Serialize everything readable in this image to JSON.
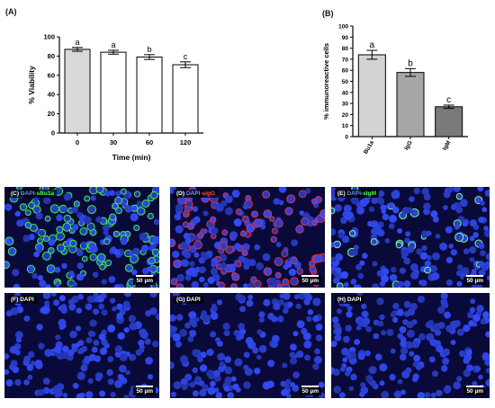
{
  "panel_a": {
    "letter": "(A)"
  },
  "panel_b": {
    "letter": "(B)"
  },
  "chart_data": [
    {
      "type": "bar",
      "categories": [
        "0",
        "30",
        "60",
        "120"
      ],
      "values": [
        87,
        84,
        79,
        71
      ],
      "errors": [
        2,
        2,
        2.5,
        3
      ],
      "letters": [
        "a",
        "a",
        "b",
        "c"
      ],
      "xlabel": "Time (min)",
      "ylabel": "% Viability",
      "ylim": [
        0,
        100
      ],
      "yticks": [
        0,
        20,
        40,
        60,
        80,
        100
      ],
      "colors": [
        "#d9d9d9",
        "#ffffff",
        "#ffffff",
        "#ffffff"
      ]
    },
    {
      "type": "bar",
      "categories": [
        "Bu1a",
        "IgG",
        "IgM"
      ],
      "values": [
        74,
        58,
        27
      ],
      "errors": [
        4,
        3.5,
        1.5
      ],
      "letters": [
        "a",
        "b",
        "c"
      ],
      "xlabel": "",
      "ylabel": "% immunoreactive cells",
      "ylim": [
        0,
        100
      ],
      "yticks": [
        0,
        10,
        20,
        30,
        40,
        50,
        60,
        70,
        80,
        90,
        100
      ],
      "colors": [
        "#d3d3d3",
        "#a6a6a6",
        "#7a7a7a"
      ]
    }
  ],
  "micrographs": [
    {
      "letter": "(C)",
      "dapi": "DAPI",
      "marker": "-sBu1a",
      "marker_color": "green",
      "scale": "50 µm"
    },
    {
      "letter": "(D)",
      "dapi": "DAPI",
      "marker": "-sIgG",
      "marker_color": "red",
      "scale": "50 µm"
    },
    {
      "letter": "(E)",
      "dapi": "DAPI",
      "marker": "-sIgM",
      "marker_color": "green",
      "scale": "50 µm"
    },
    {
      "letter": "(F)",
      "dapi": "DAPI",
      "marker": "",
      "marker_color": "blue",
      "scale": "50 µm"
    },
    {
      "letter": "(G)",
      "dapi": "DAPI",
      "marker": "",
      "marker_color": "blue",
      "scale": "50 µm"
    },
    {
      "letter": "(H)",
      "dapi": "DAPI",
      "marker": "",
      "marker_color": "blue",
      "scale": "50 µm"
    }
  ]
}
